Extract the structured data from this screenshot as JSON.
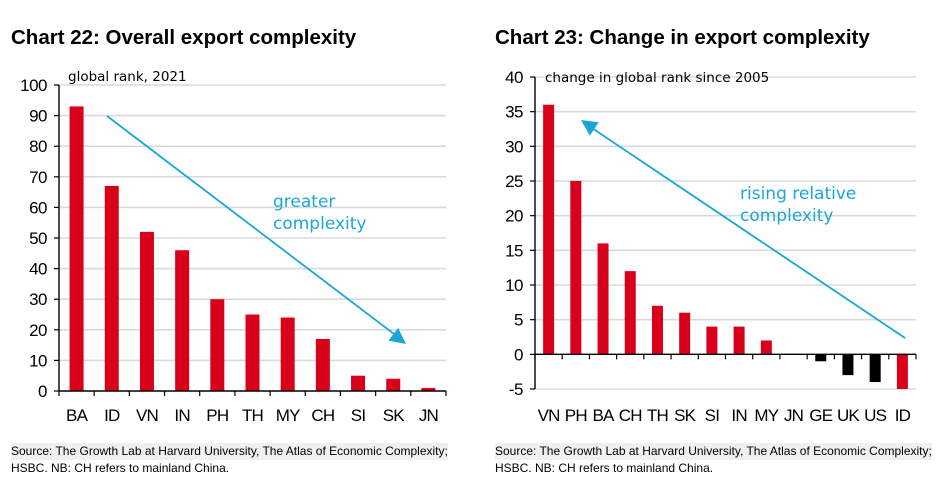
{
  "chart_data": [
    {
      "type": "bar",
      "title": "Chart 22: Overall export complexity",
      "subtitle": "global rank, 2021",
      "xlabel": "",
      "ylabel": "",
      "ylim": [
        0,
        100
      ],
      "yticks": [
        0,
        10,
        20,
        30,
        40,
        50,
        60,
        70,
        80,
        90,
        100
      ],
      "grid": true,
      "categories": [
        "BA",
        "ID",
        "VN",
        "IN",
        "PH",
        "TH",
        "MY",
        "CH",
        "SI",
        "SK",
        "JN"
      ],
      "values": [
        93,
        67,
        52,
        46,
        30,
        25,
        24,
        17,
        5,
        4,
        1
      ],
      "bar_colors": [
        "#d9001b",
        "#d9001b",
        "#d9001b",
        "#d9001b",
        "#d9001b",
        "#d9001b",
        "#d9001b",
        "#d9001b",
        "#d9001b",
        "#d9001b",
        "#d9001b"
      ],
      "annotation": {
        "text_lines": [
          "greater",
          "complexity"
        ],
        "arrow_direction": "down-right",
        "color": "#1ba6d9"
      },
      "source": [
        "Source: The Growth Lab at Harvard University, The Atlas of Economic Complexity;",
        "HSBC. NB: CH refers to mainland China."
      ]
    },
    {
      "type": "bar",
      "title": "Chart 23: Change in export complexity",
      "subtitle": "change in global rank since 2005",
      "xlabel": "",
      "ylabel": "",
      "ylim": [
        -5,
        40
      ],
      "yticks": [
        -5,
        0,
        5,
        10,
        15,
        20,
        25,
        30,
        35,
        40
      ],
      "grid": true,
      "categories": [
        "VN",
        "PH",
        "BA",
        "CH",
        "TH",
        "SK",
        "SI",
        "IN",
        "MY",
        "JN",
        "GE",
        "UK",
        "US",
        "ID"
      ],
      "values": [
        36,
        25,
        16,
        12,
        7,
        6,
        4,
        4,
        2,
        0,
        -1,
        -3,
        -4,
        -5
      ],
      "bar_colors": [
        "#d9001b",
        "#d9001b",
        "#d9001b",
        "#d9001b",
        "#d9001b",
        "#d9001b",
        "#d9001b",
        "#d9001b",
        "#d9001b",
        "#d9001b",
        "#000000",
        "#000000",
        "#000000",
        "#d9001b"
      ],
      "annotation": {
        "text_lines": [
          "rising relative",
          "complexity"
        ],
        "arrow_direction": "up-left",
        "color": "#1ba6d9"
      },
      "source": [
        "Source: The Growth Lab at Harvard University, The Atlas of Economic Complexity;",
        "HSBC. NB: CH refers to mainland China."
      ]
    }
  ]
}
